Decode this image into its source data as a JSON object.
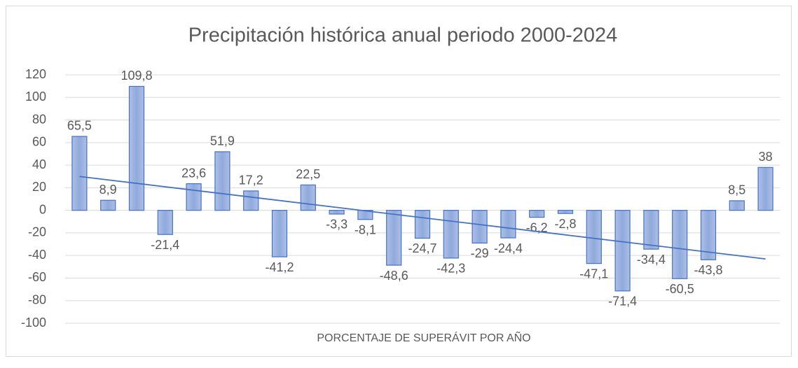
{
  "chart_data": {
    "type": "bar",
    "title": "Precipitación histórica anual periodo 2000-2024",
    "x_label": "PORCENTAJE DE SUPERÁVIT POR AÑO",
    "categories": [
      null,
      null,
      null,
      null,
      null,
      null,
      null,
      null,
      null,
      null,
      null,
      null,
      null,
      null,
      null,
      null,
      null,
      null,
      null,
      null,
      null,
      null,
      null,
      null,
      null
    ],
    "values": [
      65.5,
      8.9,
      109.8,
      -21.4,
      23.6,
      51.9,
      17.2,
      -41.2,
      22.5,
      -3.3,
      -8.1,
      -48.6,
      -24.7,
      -42.3,
      -29,
      -24.4,
      -6.2,
      -2.8,
      -47.1,
      -71.4,
      -34.4,
      -60.5,
      -43.8,
      8.5,
      38
    ],
    "value_labels": [
      "65,5",
      "8,9",
      "109,8",
      "-21,4",
      "23,6",
      "51,9",
      "17,2",
      "-41,2",
      "22,5",
      "-3,3",
      "-8,1",
      "-48,6",
      "-24,7",
      "-42,3",
      "-29",
      "-24,4",
      "-6,2",
      "-2,8",
      "-47,1",
      "-71,4",
      "-34,4",
      "-60,5",
      "-43,8",
      "8,5",
      "38"
    ],
    "color": "#4472c4",
    "trendline": "linear",
    "ylim": [
      -100,
      120
    ],
    "yticks": [
      -100,
      -80,
      -60,
      -40,
      -20,
      0,
      20,
      40,
      60,
      80,
      100,
      120
    ],
    "grid": true
  }
}
